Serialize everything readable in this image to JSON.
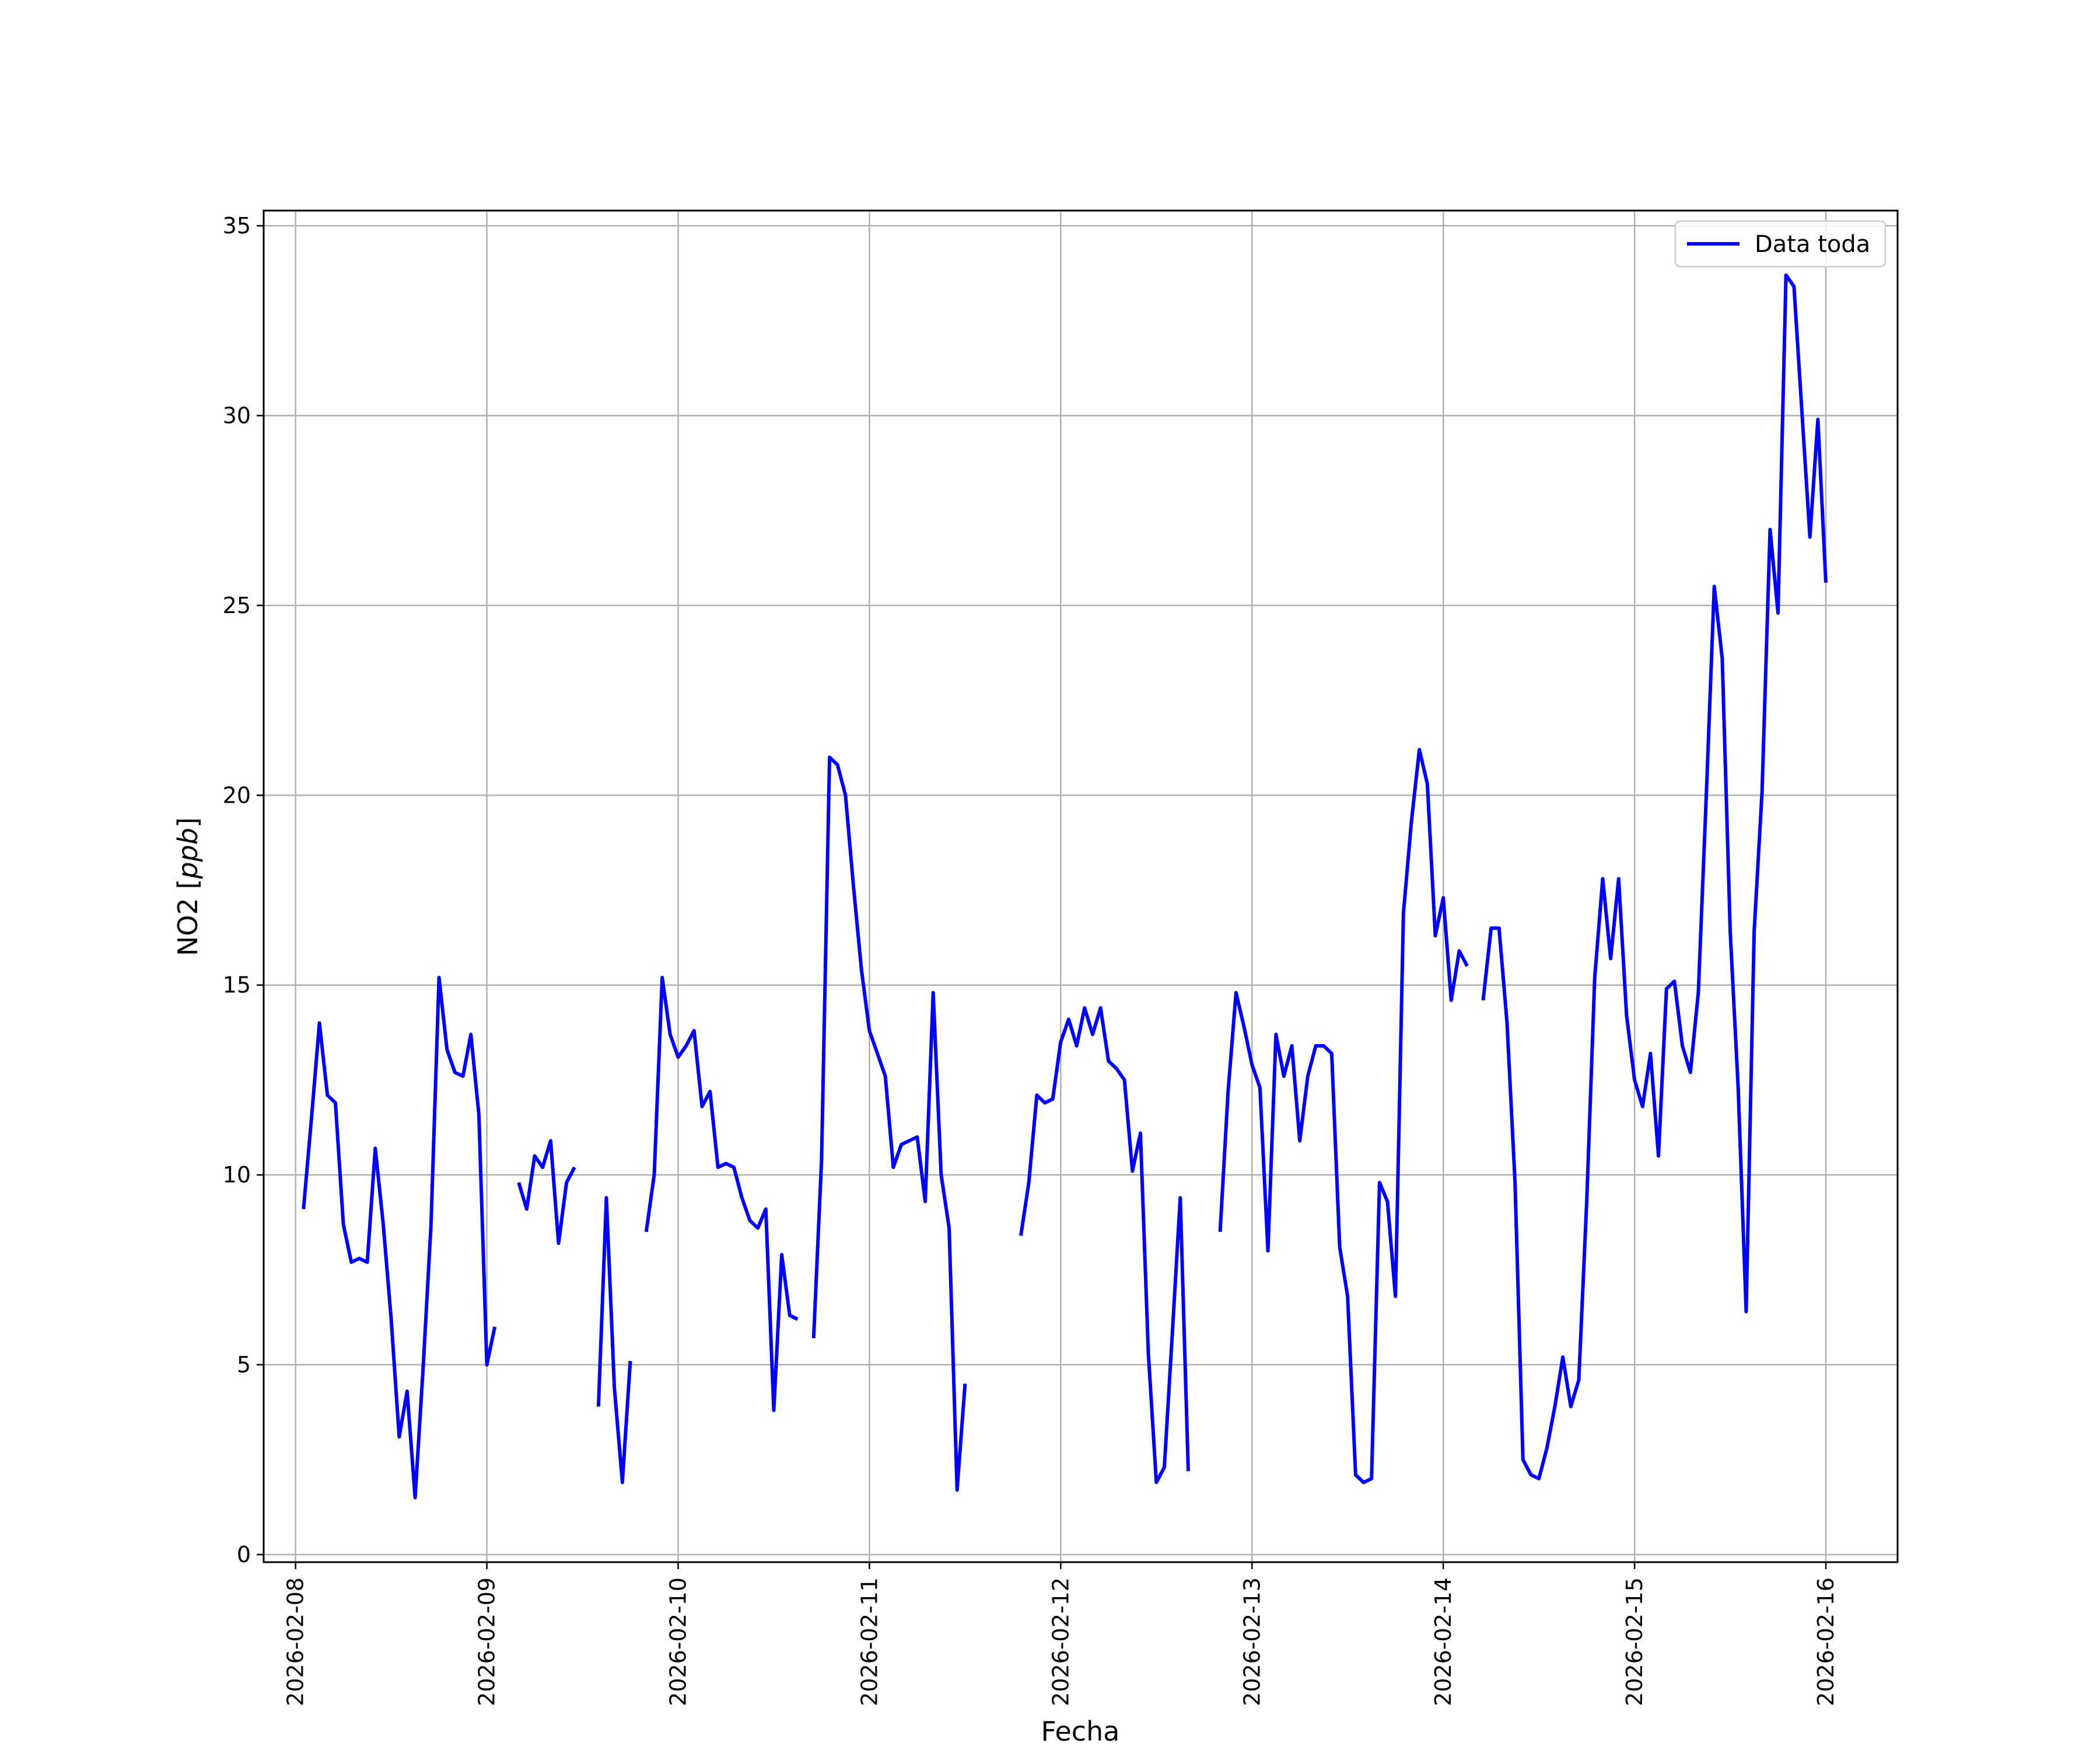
{
  "chart_data": {
    "type": "line",
    "xlabel": "Fecha",
    "ylabel_prefix": "NO2 [",
    "ylabel_unit": "ppb",
    "ylabel_suffix": "]",
    "xlim": [
      "2026-02-07 20:00",
      "2026-02-16 09:00"
    ],
    "ylim": [
      -0.2,
      35.4
    ],
    "x_ticks": [
      "2026-02-08",
      "2026-02-09",
      "2026-02-10",
      "2026-02-11",
      "2026-02-12",
      "2026-02-13",
      "2026-02-14",
      "2026-02-15",
      "2026-02-16"
    ],
    "y_ticks": [
      0,
      5,
      10,
      15,
      20,
      25,
      30,
      35
    ],
    "grid": true,
    "legend_position": "top-right",
    "line_color": "#0000ff",
    "series": [
      {
        "name": "Data toda",
        "points": [
          [
            "2026-02-08 01:00",
            9.1
          ],
          [
            "2026-02-08 02:00",
            11.5
          ],
          [
            "2026-02-08 03:00",
            14.0
          ],
          [
            "2026-02-08 04:00",
            12.1
          ],
          [
            "2026-02-08 05:00",
            11.9
          ],
          [
            "2026-02-08 06:00",
            8.7
          ],
          [
            "2026-02-08 07:00",
            7.7
          ],
          [
            "2026-02-08 08:00",
            7.8
          ],
          [
            "2026-02-08 09:00",
            7.7
          ],
          [
            "2026-02-08 10:00",
            10.7
          ],
          [
            "2026-02-08 11:00",
            8.7
          ],
          [
            "2026-02-08 12:00",
            6.2
          ],
          [
            "2026-02-08 13:00",
            3.1
          ],
          [
            "2026-02-08 14:00",
            4.3
          ],
          [
            "2026-02-08 15:00",
            1.5
          ],
          [
            "2026-02-08 16:00",
            4.9
          ],
          [
            "2026-02-08 17:00",
            8.7
          ],
          [
            "2026-02-08 18:00",
            15.2
          ],
          [
            "2026-02-08 19:00",
            13.3
          ],
          [
            "2026-02-08 20:00",
            12.7
          ],
          [
            "2026-02-08 21:00",
            12.6
          ],
          [
            "2026-02-08 22:00",
            13.7
          ],
          [
            "2026-02-08 23:00",
            11.6
          ],
          [
            "2026-02-09 00:00",
            5.0
          ],
          [
            "2026-02-09 01:00",
            6.0
          ],
          null,
          [
            "2026-02-09 04:00",
            9.8
          ],
          [
            "2026-02-09 05:00",
            9.1
          ],
          [
            "2026-02-09 06:00",
            10.5
          ],
          [
            "2026-02-09 07:00",
            10.2
          ],
          [
            "2026-02-09 08:00",
            10.9
          ],
          [
            "2026-02-09 09:00",
            8.2
          ],
          [
            "2026-02-09 10:00",
            9.8
          ],
          [
            "2026-02-09 11:00",
            10.2
          ],
          null,
          [
            "2026-02-09 14:00",
            3.9
          ],
          [
            "2026-02-09 15:00",
            9.4
          ],
          [
            "2026-02-09 16:00",
            4.4
          ],
          [
            "2026-02-09 17:00",
            1.9
          ],
          [
            "2026-02-09 18:00",
            5.1
          ],
          null,
          [
            "2026-02-09 20:00",
            8.5
          ],
          [
            "2026-02-09 21:00",
            10.0
          ],
          [
            "2026-02-09 22:00",
            15.2
          ],
          [
            "2026-02-09 23:00",
            13.7
          ],
          [
            "2026-02-10 00:00",
            13.1
          ],
          [
            "2026-02-10 01:00",
            13.4
          ],
          [
            "2026-02-10 02:00",
            13.8
          ],
          [
            "2026-02-10 03:00",
            11.8
          ],
          [
            "2026-02-10 04:00",
            12.2
          ],
          [
            "2026-02-10 05:00",
            10.2
          ],
          [
            "2026-02-10 06:00",
            10.3
          ],
          [
            "2026-02-10 07:00",
            10.2
          ],
          [
            "2026-02-10 08:00",
            9.4
          ],
          [
            "2026-02-10 09:00",
            8.8
          ],
          [
            "2026-02-10 10:00",
            8.6
          ],
          [
            "2026-02-10 11:00",
            9.1
          ],
          [
            "2026-02-10 12:00",
            3.8
          ],
          [
            "2026-02-10 13:00",
            7.9
          ],
          [
            "2026-02-10 14:00",
            6.3
          ],
          [
            "2026-02-10 15:00",
            6.2
          ],
          null,
          [
            "2026-02-10 17:00",
            5.7
          ],
          [
            "2026-02-10 18:00",
            10.4
          ],
          [
            "2026-02-10 19:00",
            21.0
          ],
          [
            "2026-02-10 20:00",
            20.8
          ],
          [
            "2026-02-10 21:00",
            20.0
          ],
          [
            "2026-02-10 22:00",
            17.6
          ],
          [
            "2026-02-10 23:00",
            15.4
          ],
          [
            "2026-02-11 00:00",
            13.8
          ],
          [
            "2026-02-11 01:00",
            13.2
          ],
          [
            "2026-02-11 02:00",
            12.6
          ],
          [
            "2026-02-11 03:00",
            10.2
          ],
          [
            "2026-02-11 04:00",
            10.8
          ],
          [
            "2026-02-11 05:00",
            10.9
          ],
          [
            "2026-02-11 06:00",
            11.0
          ],
          [
            "2026-02-11 07:00",
            9.3
          ],
          [
            "2026-02-11 08:00",
            14.8
          ],
          [
            "2026-02-11 09:00",
            10.0
          ],
          [
            "2026-02-11 10:00",
            8.6
          ],
          [
            "2026-02-11 11:00",
            1.7
          ],
          [
            "2026-02-11 12:00",
            4.5
          ],
          null,
          [
            "2026-02-11 19:00",
            8.4
          ],
          [
            "2026-02-11 20:00",
            9.8
          ],
          [
            "2026-02-11 21:00",
            12.1
          ],
          [
            "2026-02-11 22:00",
            11.9
          ],
          [
            "2026-02-11 23:00",
            12.0
          ],
          [
            "2026-02-12 00:00",
            13.5
          ],
          [
            "2026-02-12 01:00",
            14.1
          ],
          [
            "2026-02-12 02:00",
            13.4
          ],
          [
            "2026-02-12 03:00",
            14.4
          ],
          [
            "2026-02-12 04:00",
            13.7
          ],
          [
            "2026-02-12 05:00",
            14.4
          ],
          [
            "2026-02-12 06:00",
            13.0
          ],
          [
            "2026-02-12 07:00",
            12.8
          ],
          [
            "2026-02-12 08:00",
            12.5
          ],
          [
            "2026-02-12 09:00",
            10.1
          ],
          [
            "2026-02-12 10:00",
            11.1
          ],
          [
            "2026-02-12 11:00",
            5.3
          ],
          [
            "2026-02-12 12:00",
            1.9
          ],
          [
            "2026-02-12 13:00",
            2.3
          ],
          [
            "2026-02-12 14:00",
            5.8
          ],
          [
            "2026-02-12 15:00",
            9.4
          ],
          [
            "2026-02-12 16:00",
            2.2
          ],
          null,
          [
            "2026-02-12 20:00",
            8.5
          ],
          [
            "2026-02-12 21:00",
            12.2
          ],
          [
            "2026-02-12 22:00",
            14.8
          ],
          [
            "2026-02-12 23:00",
            13.9
          ],
          [
            "2026-02-13 00:00",
            12.9
          ],
          [
            "2026-02-13 01:00",
            12.3
          ],
          [
            "2026-02-13 02:00",
            8.0
          ],
          [
            "2026-02-13 03:00",
            13.7
          ],
          [
            "2026-02-13 04:00",
            12.6
          ],
          [
            "2026-02-13 05:00",
            13.4
          ],
          [
            "2026-02-13 06:00",
            10.9
          ],
          [
            "2026-02-13 07:00",
            12.6
          ],
          [
            "2026-02-13 08:00",
            13.4
          ],
          [
            "2026-02-13 09:00",
            13.4
          ],
          [
            "2026-02-13 10:00",
            13.2
          ],
          [
            "2026-02-13 11:00",
            8.1
          ],
          [
            "2026-02-13 12:00",
            6.8
          ],
          [
            "2026-02-13 13:00",
            2.1
          ],
          [
            "2026-02-13 14:00",
            1.9
          ],
          [
            "2026-02-13 15:00",
            2.0
          ],
          [
            "2026-02-13 16:00",
            9.8
          ],
          [
            "2026-02-13 17:00",
            9.3
          ],
          [
            "2026-02-13 18:00",
            6.8
          ],
          [
            "2026-02-13 19:00",
            16.9
          ],
          [
            "2026-02-13 20:00",
            19.3
          ],
          [
            "2026-02-13 21:00",
            21.2
          ],
          [
            "2026-02-13 22:00",
            20.3
          ],
          [
            "2026-02-13 23:00",
            16.3
          ],
          [
            "2026-02-14 00:00",
            17.3
          ],
          [
            "2026-02-14 01:00",
            14.6
          ],
          [
            "2026-02-14 02:00",
            15.9
          ],
          [
            "2026-02-14 03:00",
            15.5
          ],
          null,
          [
            "2026-02-14 05:00",
            14.6
          ],
          [
            "2026-02-14 06:00",
            16.5
          ],
          [
            "2026-02-14 07:00",
            16.5
          ],
          [
            "2026-02-14 08:00",
            14.0
          ],
          [
            "2026-02-14 09:00",
            9.8
          ],
          [
            "2026-02-14 10:00",
            2.5
          ],
          [
            "2026-02-14 11:00",
            2.1
          ],
          [
            "2026-02-14 12:00",
            2.0
          ],
          [
            "2026-02-14 13:00",
            2.8
          ],
          [
            "2026-02-14 14:00",
            3.9
          ],
          [
            "2026-02-14 15:00",
            5.2
          ],
          [
            "2026-02-14 16:00",
            3.9
          ],
          [
            "2026-02-14 17:00",
            4.6
          ],
          [
            "2026-02-14 18:00",
            9.3
          ],
          [
            "2026-02-14 19:00",
            15.2
          ],
          [
            "2026-02-14 20:00",
            17.8
          ],
          [
            "2026-02-14 21:00",
            15.7
          ],
          [
            "2026-02-14 22:00",
            17.8
          ],
          [
            "2026-02-14 23:00",
            14.2
          ],
          [
            "2026-02-15 00:00",
            12.5
          ],
          [
            "2026-02-15 01:00",
            11.8
          ],
          [
            "2026-02-15 02:00",
            13.2
          ],
          [
            "2026-02-15 03:00",
            10.5
          ],
          [
            "2026-02-15 04:00",
            14.9
          ],
          [
            "2026-02-15 05:00",
            15.1
          ],
          [
            "2026-02-15 06:00",
            13.4
          ],
          [
            "2026-02-15 07:00",
            12.7
          ],
          [
            "2026-02-15 08:00",
            14.8
          ],
          [
            "2026-02-15 09:00",
            20.0
          ],
          [
            "2026-02-15 10:00",
            25.5
          ],
          [
            "2026-02-15 11:00",
            23.6
          ],
          [
            "2026-02-15 12:00",
            16.4
          ],
          [
            "2026-02-15 13:00",
            12.3
          ],
          [
            "2026-02-15 14:00",
            6.4
          ],
          [
            "2026-02-15 15:00",
            16.4
          ],
          [
            "2026-02-15 16:00",
            20.1
          ],
          [
            "2026-02-15 17:00",
            27.0
          ],
          [
            "2026-02-15 18:00",
            24.8
          ],
          [
            "2026-02-15 19:00",
            33.7
          ],
          [
            "2026-02-15 20:00",
            33.4
          ],
          [
            "2026-02-15 21:00",
            30.1
          ],
          [
            "2026-02-15 22:00",
            26.8
          ],
          [
            "2026-02-15 23:00",
            29.9
          ],
          [
            "2026-02-16 00:00",
            25.6
          ]
        ]
      }
    ]
  }
}
